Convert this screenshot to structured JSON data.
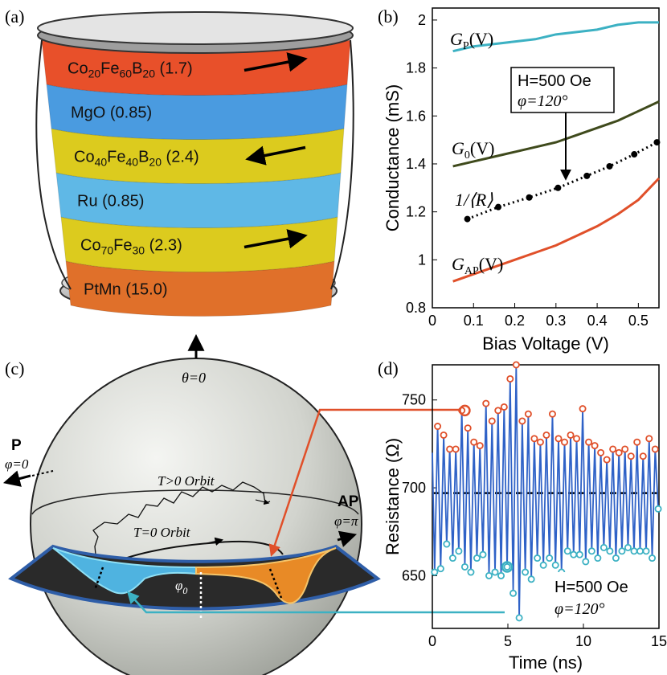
{
  "panels": {
    "a": "(a)",
    "b": "(b)",
    "c": "(c)",
    "d": "(d)"
  },
  "panel_a": {
    "layers": [
      {
        "html": "Co<tspan font-size='14' dy='5'>20</tspan><tspan dy='-5'>Fe</tspan><tspan font-size='14' dy='5'>60</tspan><tspan dy='-5'>B</tspan><tspan font-size='14' dy='5'>20</tspan><tspan dy='-5'> (1.7)</tspan>",
        "color": "#e8502a",
        "arrow": "right"
      },
      {
        "text": "MgO (0.85)",
        "color": "#4a9be0",
        "arrow": ""
      },
      {
        "html": "Co<tspan font-size='14' dy='5'>40</tspan><tspan dy='-5'>Fe</tspan><tspan font-size='14' dy='5'>40</tspan><tspan dy='-5'>B</tspan><tspan font-size='14' dy='5'>20</tspan><tspan dy='-5'> (2.4)</tspan>",
        "color": "#dccb1e",
        "arrow": "left"
      },
      {
        "text": "Ru (0.85)",
        "color": "#5fb8e6",
        "arrow": ""
      },
      {
        "html": "Co<tspan font-size='14' dy='5'>70</tspan><tspan dy='-5'>Fe</tspan><tspan font-size='14' dy='5'>30</tspan><tspan dy='-5'> (2.3)</tspan>",
        "color": "#dccb1e",
        "arrow": "right"
      },
      {
        "text": "PtMn (15.0)",
        "color": "#e0702a",
        "arrow": ""
      }
    ]
  },
  "chart_data": [
    {
      "type": "line",
      "panel": "b",
      "title": "",
      "xlabel": "Bias Voltage (V)",
      "ylabel": "Conductance (mS)",
      "xlim": [
        0,
        0.55
      ],
      "ylim": [
        0.8,
        2.05
      ],
      "xticks": [
        "0",
        "0.1",
        "0.2",
        "0.3",
        "0.4",
        "0.5"
      ],
      "yticks": [
        "0.8",
        "1",
        "1.2",
        "1.4",
        "1.6",
        "1.8",
        "2"
      ],
      "annotation": {
        "line1": "H=500 Oe",
        "line2": "φ=120°"
      },
      "series": [
        {
          "name": "G_P(V)",
          "label": "G",
          "sub": "P",
          "suffix": "(V)",
          "color": "#3cb1c3",
          "x": [
            0.05,
            0.1,
            0.15,
            0.2,
            0.25,
            0.3,
            0.35,
            0.4,
            0.45,
            0.5,
            0.55
          ],
          "y": [
            1.87,
            1.89,
            1.9,
            1.91,
            1.92,
            1.94,
            1.95,
            1.96,
            1.98,
            1.99,
            1.99
          ]
        },
        {
          "name": "G_0(V)",
          "label": "G",
          "sub": "0",
          "suffix": "(V)",
          "color": "#3f4a1c",
          "x": [
            0.05,
            0.1,
            0.15,
            0.2,
            0.25,
            0.3,
            0.35,
            0.4,
            0.45,
            0.5,
            0.55
          ],
          "y": [
            1.39,
            1.41,
            1.43,
            1.45,
            1.47,
            1.49,
            1.52,
            1.55,
            1.58,
            1.62,
            1.66
          ]
        },
        {
          "name": "1/<R>",
          "label": "1/⟨R⟩",
          "sub": "",
          "suffix": "",
          "color": "#000000",
          "dotted": true,
          "x": [
            0.085,
            0.16,
            0.235,
            0.305,
            0.375,
            0.43,
            0.49,
            0.545
          ],
          "y": [
            1.17,
            1.22,
            1.26,
            1.3,
            1.35,
            1.39,
            1.44,
            1.49
          ]
        },
        {
          "name": "G_AP(V)",
          "label": "G",
          "sub": "AP",
          "suffix": "(V)",
          "color": "#e0502a",
          "x": [
            0.05,
            0.1,
            0.15,
            0.2,
            0.25,
            0.3,
            0.35,
            0.4,
            0.45,
            0.5,
            0.55
          ],
          "y": [
            0.91,
            0.94,
            0.97,
            1.0,
            1.03,
            1.06,
            1.1,
            1.14,
            1.19,
            1.25,
            1.34
          ]
        }
      ]
    },
    {
      "type": "line",
      "panel": "d",
      "xlabel": "Time (ns)",
      "ylabel": "Resistance (Ω)",
      "xlim": [
        0,
        15
      ],
      "ylim": [
        620,
        770
      ],
      "xticks": [
        "0",
        "5",
        "10",
        "15"
      ],
      "yticks": [
        "650",
        "700",
        "750"
      ],
      "mean_line": 697,
      "annotation": {
        "line1": "H=500 Oe",
        "line2": "φ=120°"
      },
      "series": [
        {
          "name": "resistance",
          "color": "#2f62c7",
          "x": [
            0.0,
            0.15,
            0.35,
            0.55,
            0.75,
            0.95,
            1.15,
            1.35,
            1.55,
            1.75,
            1.95,
            2.15,
            2.35,
            2.55,
            2.75,
            2.95,
            3.15,
            3.35,
            3.55,
            3.75,
            3.95,
            4.15,
            4.35,
            4.55,
            4.75,
            4.95,
            5.15,
            5.35,
            5.55,
            5.75,
            5.95,
            6.15,
            6.35,
            6.55,
            6.75,
            6.95,
            7.15,
            7.35,
            7.55,
            7.75,
            7.95,
            8.15,
            8.35,
            8.55,
            8.75,
            8.95,
            9.15,
            9.35,
            9.55,
            9.75,
            9.95,
            10.15,
            10.35,
            10.55,
            10.75,
            10.95,
            11.15,
            11.35,
            11.55,
            11.75,
            11.95,
            12.15,
            12.35,
            12.55,
            12.75,
            12.95,
            13.15,
            13.35,
            13.55,
            13.75,
            13.95,
            14.15,
            14.35,
            14.55,
            14.75,
            14.95
          ],
          "y": [
            720,
            652,
            735,
            654,
            730,
            668,
            722,
            660,
            722,
            664,
            744,
            655,
            734,
            652,
            726,
            660,
            724,
            662,
            748,
            650,
            738,
            652,
            744,
            650,
            746,
            655,
            762,
            640,
            770,
            626,
            738,
            652,
            742,
            648,
            728,
            660,
            726,
            656,
            730,
            660,
            742,
            656,
            728,
            652,
            726,
            664,
            730,
            662,
            728,
            662,
            745,
            658,
            726,
            664,
            724,
            660,
            720,
            666,
            716,
            664,
            722,
            660,
            720,
            664,
            722,
            666,
            718,
            664,
            726,
            664,
            718,
            664,
            728,
            660,
            722,
            688
          ]
        }
      ]
    }
  ],
  "panel_c": {
    "theta_label": "θ=0",
    "p_label": "P",
    "p_phi": "φ=0",
    "ap_label": "AP",
    "ap_phi": "φ=π",
    "t_pos_orbit": "T>0 Orbit",
    "t_zero_orbit": "T=0 Orbit",
    "phi0": "φ0"
  },
  "colors": {
    "orange": "#e0502a",
    "cyan": "#3cb1c3",
    "blue": "#2f62c7",
    "band_blue": "#2f5ea8"
  }
}
